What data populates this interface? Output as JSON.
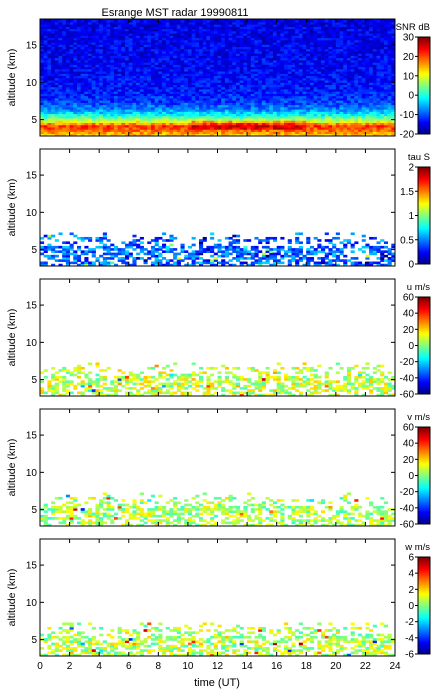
{
  "figure": {
    "title": "Esrange MST radar 19990811",
    "xlabel": "time (UT)"
  },
  "chart_data": {
    "type": "heatmap",
    "title": "Esrange MST radar 19990811",
    "xlabel": "time (UT)",
    "xlim": [
      0,
      24
    ],
    "xticks": [
      0,
      2,
      4,
      6,
      8,
      10,
      12,
      14,
      16,
      18,
      20,
      22,
      24
    ],
    "ylim": [
      2.8,
      18.5
    ],
    "yticks": [
      5,
      10,
      15
    ],
    "colormap": "jet",
    "panels": [
      {
        "ylabel": "altitude (km)",
        "colorbar_label": "SNR dB",
        "clim": [
          -20,
          30
        ],
        "cbar_ticks": [
          -20,
          -10,
          0,
          10,
          20,
          30
        ],
        "profile": [
          {
            "alt": 3.0,
            "value": 14
          },
          {
            "alt": 3.6,
            "value": 19
          },
          {
            "alt": 4.2,
            "value": 21
          },
          {
            "alt": 4.8,
            "value": 10
          },
          {
            "alt": 5.4,
            "value": 2
          },
          {
            "alt": 6.0,
            "value": -4
          },
          {
            "alt": 6.6,
            "value": -8
          },
          {
            "alt": 7.5,
            "value": -11
          },
          {
            "alt": 9.0,
            "value": -13
          },
          {
            "alt": 12.0,
            "value": -14
          },
          {
            "alt": 18.5,
            "value": -15
          }
        ],
        "coverage": "full"
      },
      {
        "ylabel": "altitude (km)",
        "colorbar_label": "tau S",
        "clim": [
          0,
          2
        ],
        "cbar_ticks": [
          0,
          0.5,
          1,
          1.5,
          2
        ],
        "typical": 0.45,
        "coverage": "sparse"
      },
      {
        "ylabel": "altitude (km)",
        "colorbar_label": "u m/s",
        "clim": [
          -60,
          60
        ],
        "cbar_ticks": [
          -60,
          -40,
          -20,
          0,
          20,
          40,
          60
        ],
        "typical": 8,
        "coverage": "sparse"
      },
      {
        "ylabel": "altitude (km)",
        "colorbar_label": "v m/s",
        "clim": [
          -60,
          60
        ],
        "cbar_ticks": [
          -60,
          -40,
          -20,
          0,
          20,
          40,
          60
        ],
        "typical": 5,
        "coverage": "sparse"
      },
      {
        "ylabel": "altitude (km)",
        "colorbar_label": "w m/s",
        "clim": [
          -6,
          6
        ],
        "cbar_ticks": [
          -6,
          -4,
          -2,
          0,
          2,
          4,
          6
        ],
        "typical": 0.6,
        "coverage": "sparse"
      }
    ]
  }
}
